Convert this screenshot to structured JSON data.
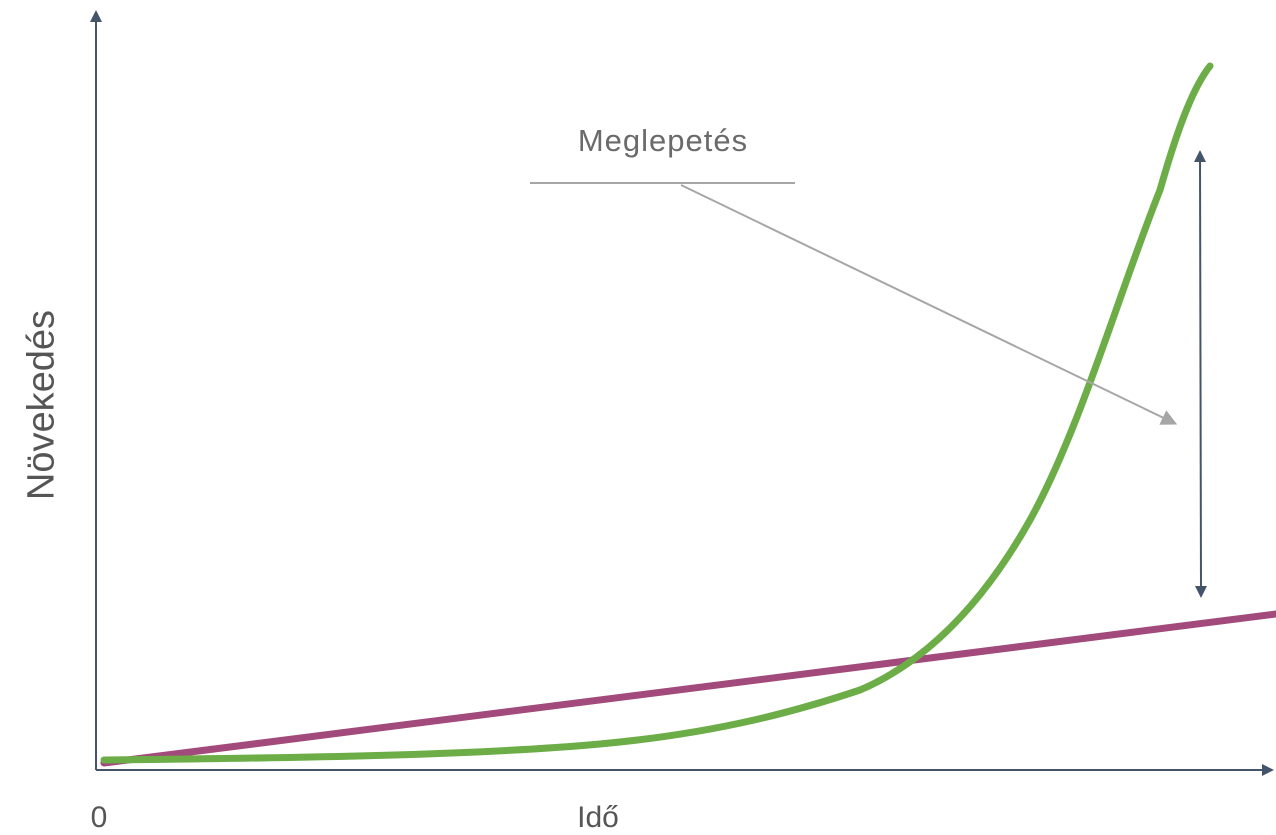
{
  "diagram": {
    "y_axis_label": "Növekedés",
    "x_axis_label": "Idő",
    "origin_label": "0",
    "annotation": "Meglepetés"
  },
  "colors": {
    "axis": "#44546a",
    "exponential_curve": "#6cad47",
    "linear_line": "#a14a7b",
    "annotation_pointer": "#a6a6a6",
    "label_text": "#555555"
  },
  "chart_data": {
    "type": "line",
    "title": "",
    "xlabel": "Idő",
    "ylabel": "Növekedés",
    "series": [
      {
        "values": [
          [
            0.0,
            0.0
          ],
          [
            0.1,
            0.5
          ],
          [
            0.2,
            1.0
          ],
          [
            0.3,
            1.6
          ],
          [
            0.4,
            2.4
          ],
          [
            0.5,
            3.8
          ],
          [
            0.6,
            6.0
          ],
          [
            0.7,
            13.2
          ],
          [
            0.8,
            41.0
          ],
          [
            0.9,
            83.0
          ],
          [
            1.0,
            100.0
          ]
        ]
      },
      {
        "values": [
          [
            0.0,
            0.0
          ],
          [
            1.0,
            21.0
          ]
        ]
      }
    ],
    "annotations": [
      {
        "text": "Meglepetés",
        "type": "double-arrow gap between curves"
      }
    ],
    "grid": false
  }
}
